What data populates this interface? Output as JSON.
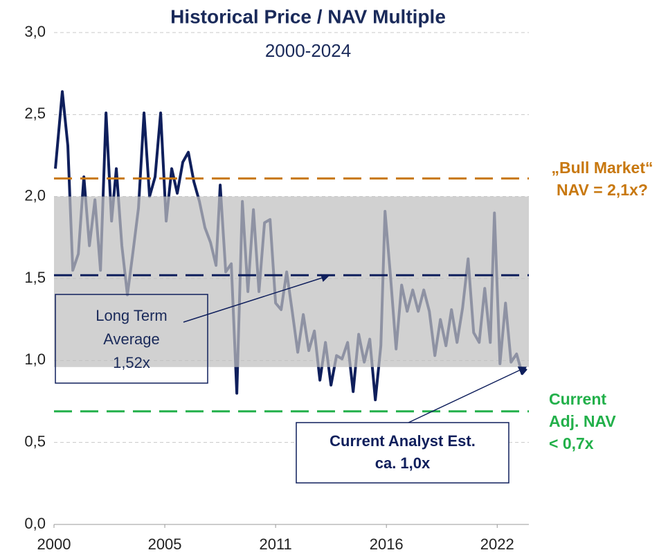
{
  "chart_data": {
    "type": "line",
    "title": "Historical Price / NAV Multiple",
    "subtitle": "2000-2024",
    "xlim": [
      2000,
      2024
    ],
    "xticks": [
      {
        "value": 2000,
        "label": "2000"
      },
      {
        "value": 2005.6,
        "label": "2005"
      },
      {
        "value": 2011.2,
        "label": "2011"
      },
      {
        "value": 2016.8,
        "label": "2016"
      },
      {
        "value": 2022.4,
        "label": "2022"
      }
    ],
    "ylim": [
      0,
      3
    ],
    "yticks": [
      {
        "value": 0,
        "label": "0,0"
      },
      {
        "value": 0.5,
        "label": "0,5"
      },
      {
        "value": 1,
        "label": "1,0"
      },
      {
        "value": 1.5,
        "label": "1,5"
      },
      {
        "value": 2,
        "label": "2,0"
      },
      {
        "value": 2.5,
        "label": "2,5"
      },
      {
        "value": 3,
        "label": "3,0"
      }
    ],
    "grid": true,
    "band": {
      "from": 0.96,
      "to": 2.0,
      "color": "#bfbfbf"
    },
    "series": [
      {
        "color": "#0f1f5c",
        "x": [
          2000.07,
          2000.42,
          2000.7,
          2000.95,
          2001.23,
          2001.51,
          2001.79,
          2002.07,
          2002.35,
          2002.63,
          2002.91,
          2003.15,
          2003.43,
          2003.71,
          2003.99,
          2004.27,
          2004.55,
          2004.83,
          2005.11,
          2005.39,
          2005.67,
          2005.95,
          2006.23,
          2006.51,
          2006.79,
          2007.07,
          2007.35,
          2007.63,
          2007.91,
          2008.19,
          2008.4,
          2008.68,
          2008.96,
          2009.24,
          2009.52,
          2009.8,
          2010.08,
          2010.36,
          2010.64,
          2010.92,
          2011.2,
          2011.48,
          2011.76,
          2012.04,
          2012.32,
          2012.6,
          2012.88,
          2013.16,
          2013.44,
          2013.72,
          2014.0,
          2014.28,
          2014.56,
          2014.84,
          2015.12,
          2015.4,
          2015.68,
          2015.96,
          2016.24,
          2016.52,
          2016.73,
          2017.01,
          2017.29,
          2017.57,
          2017.85,
          2018.13,
          2018.41,
          2018.69,
          2018.97,
          2019.25,
          2019.53,
          2019.81,
          2020.09,
          2020.37,
          2020.65,
          2020.93,
          2021.21,
          2021.49,
          2021.77,
          2022.05,
          2022.26,
          2022.54,
          2022.82,
          2023.1,
          2023.38,
          2023.66,
          2023.87
        ],
        "values": [
          2.17,
          2.64,
          2.31,
          1.55,
          1.65,
          2.12,
          1.7,
          1.98,
          1.55,
          2.51,
          1.85,
          2.17,
          1.7,
          1.4,
          1.66,
          1.93,
          2.51,
          2.0,
          2.12,
          2.51,
          1.85,
          2.17,
          2.02,
          2.21,
          2.27,
          2.09,
          1.97,
          1.81,
          1.72,
          1.58,
          2.07,
          1.54,
          1.59,
          0.8,
          1.97,
          1.42,
          1.92,
          1.42,
          1.84,
          1.86,
          1.35,
          1.31,
          1.54,
          1.3,
          1.05,
          1.28,
          1.06,
          1.18,
          0.88,
          1.11,
          0.85,
          1.03,
          1.01,
          1.11,
          0.81,
          1.16,
          0.99,
          1.13,
          0.76,
          1.09,
          1.91,
          1.51,
          1.07,
          1.46,
          1.3,
          1.43,
          1.3,
          1.43,
          1.3,
          1.03,
          1.25,
          1.09,
          1.31,
          1.11,
          1.32,
          1.62,
          1.17,
          1.11,
          1.44,
          1.11,
          1.9,
          0.98,
          1.35,
          0.99,
          1.04,
          0.92,
          0.95
        ]
      }
    ],
    "reference_lines": [
      {
        "value": 2.11,
        "color": "#c8780f",
        "lines": [
          "„Bull Market“",
          "NAV = 2,1x?"
        ]
      },
      {
        "value": 1.52,
        "color": "#0f1f5c"
      },
      {
        "value": 0.69,
        "color": "#22b04a",
        "lines": [
          "Current",
          "Adj. NAV",
          "< 0,7x"
        ]
      }
    ],
    "annotations": [
      {
        "lines": [
          "Long Term",
          "Average",
          "1,52x"
        ]
      },
      {
        "lines": [
          "Current Analyst Est.",
          "ca. 1,0x"
        ]
      }
    ]
  }
}
